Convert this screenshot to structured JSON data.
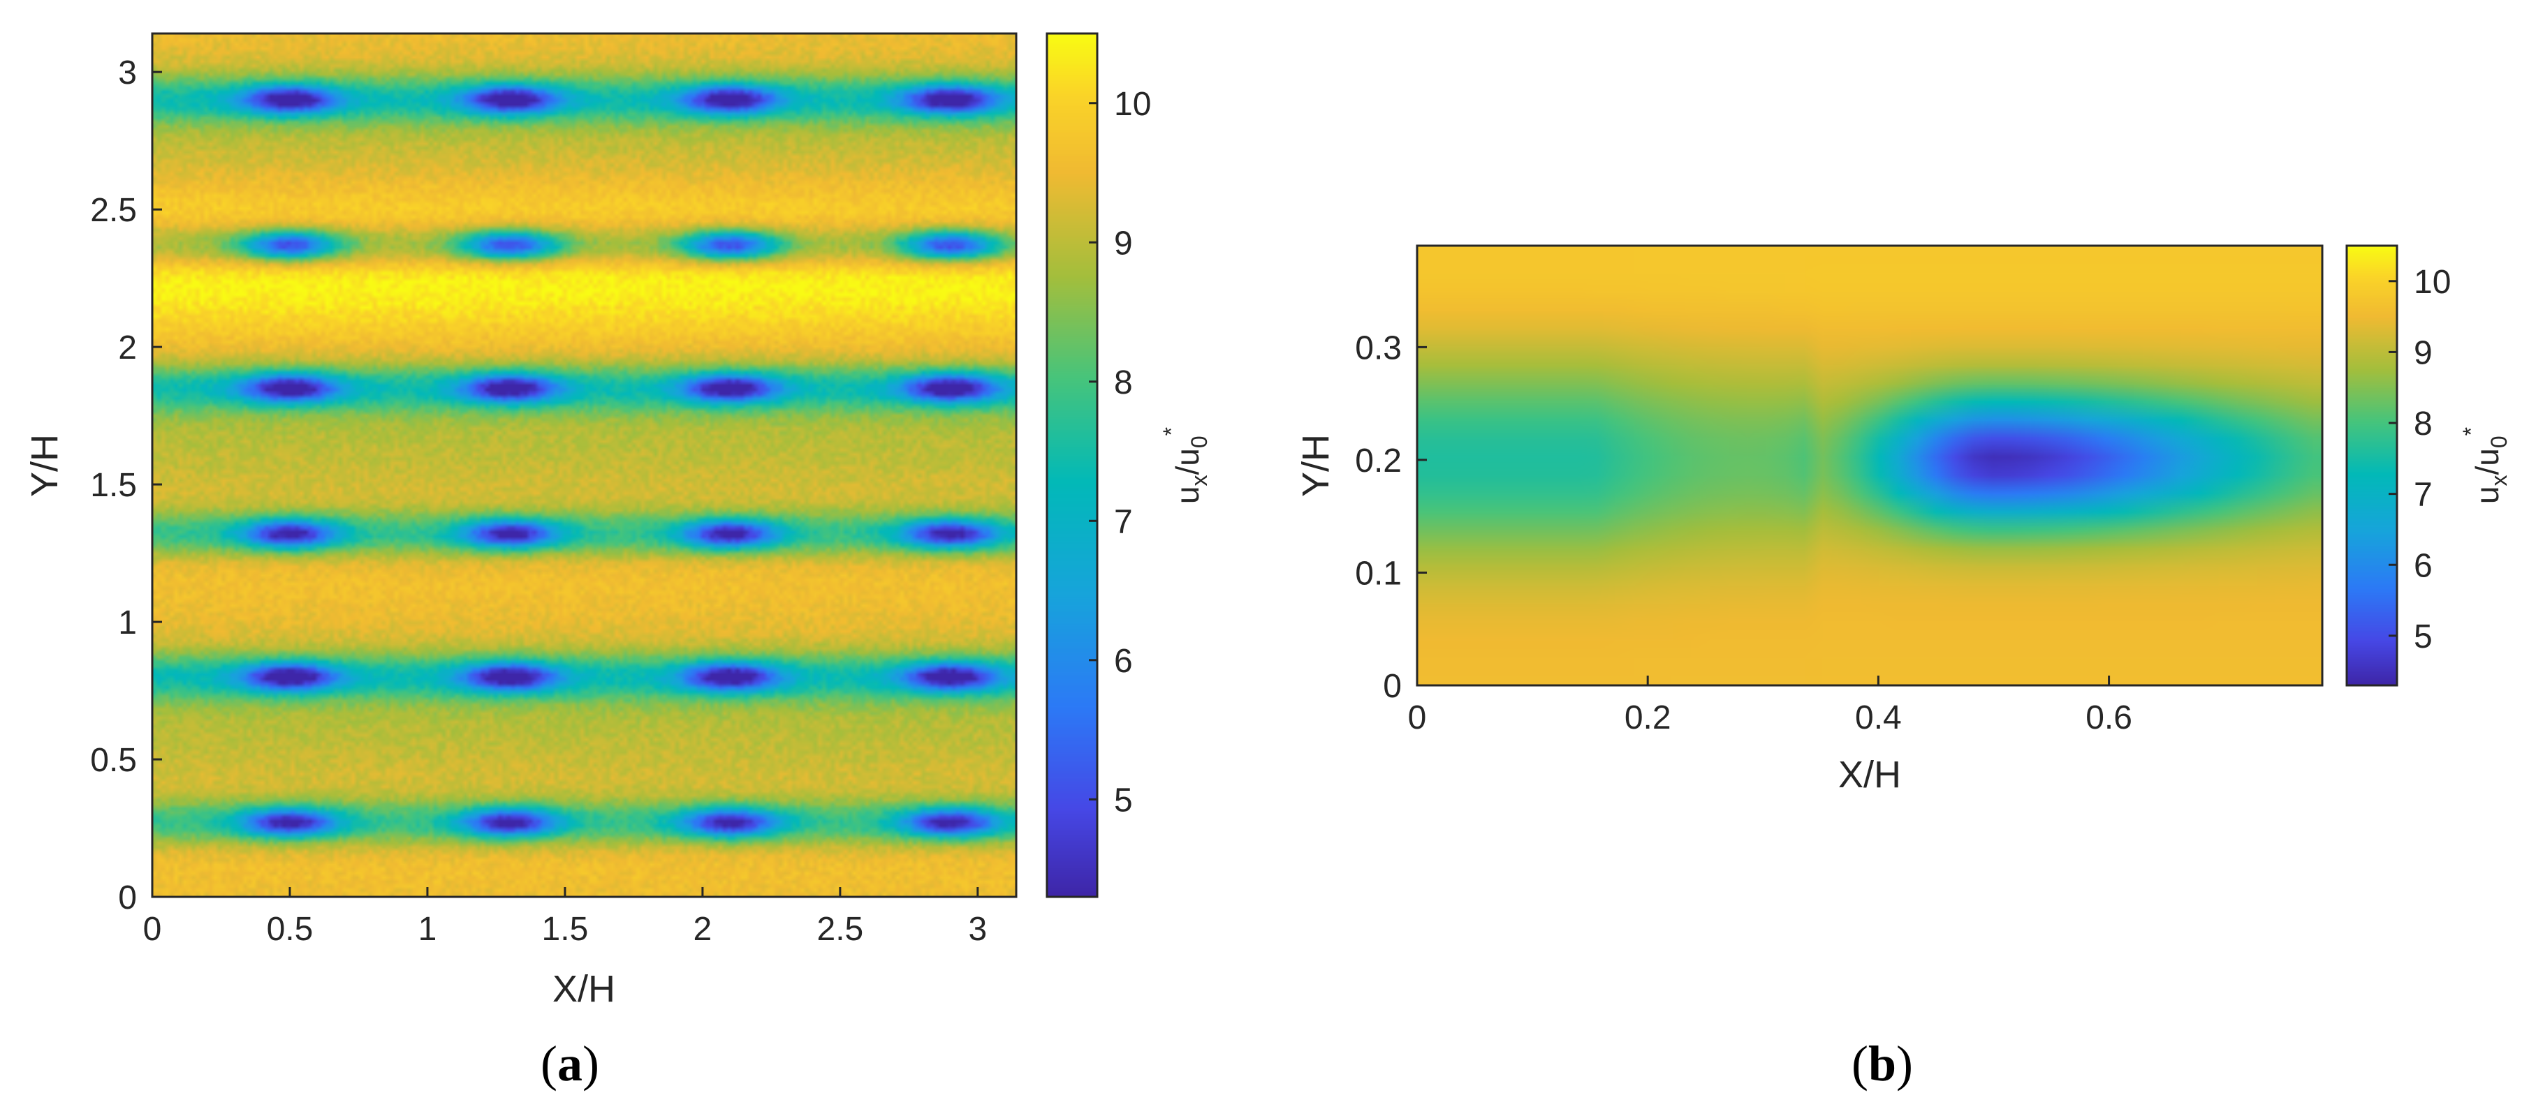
{
  "chart_data": [
    {
      "type": "heatmap",
      "panel": "(a)",
      "xlabel": "X/H",
      "ylabel": "Y/H",
      "xlim": [
        0,
        3.14
      ],
      "ylim": [
        0,
        3.14
      ],
      "xticks": [
        "0",
        "0.5",
        "1",
        "1.5",
        "2",
        "2.5",
        "3"
      ],
      "yticks": [
        "0",
        "0.5",
        "1",
        "1.5",
        "2",
        "2.5",
        "3"
      ],
      "colorbar": {
        "label": "u_x/u_0^*",
        "range": [
          4.3,
          10.5
        ],
        "ticks": [
          "5",
          "6",
          "7",
          "8",
          "9",
          "10"
        ],
        "colormap": "parula"
      },
      "field": {
        "background_value": 9.3,
        "low_speed_streak_rows_y": [
          0.27,
          0.8,
          1.32,
          1.85,
          2.37,
          2.9
        ],
        "wake_centers_x": [
          0.5,
          1.3,
          2.1,
          2.9
        ],
        "wake_min_value": 4.5,
        "high_speed_band_y": [
          2.05,
          2.62
        ],
        "high_speed_value": 10.3
      }
    },
    {
      "type": "heatmap",
      "panel": "(b)",
      "xlabel": "X/H",
      "ylabel": "Y/H",
      "xlim": [
        0,
        0.785
      ],
      "ylim": [
        0,
        0.39
      ],
      "xticks": [
        "0",
        "0.2",
        "0.4",
        "0.6"
      ],
      "yticks": [
        "0",
        "0.1",
        "0.2",
        "0.3"
      ],
      "colorbar": {
        "label": "u_x/u_0^*",
        "range": [
          4.3,
          10.5
        ],
        "ticks": [
          "5",
          "6",
          "7",
          "8",
          "9",
          "10"
        ],
        "colormap": "parula"
      },
      "field": {
        "background_value": 9.6,
        "streak_center_y": 0.2,
        "wake_center_x": 0.5,
        "wake_min_value": 4.4,
        "inflow_value_at_x0": 7.6
      }
    }
  ],
  "captions": {
    "a_letter": "a",
    "b_letter": "b",
    "open": "(",
    "close": ")"
  },
  "colorbar_text": {
    "u": "u",
    "x": "x",
    "slash": "/u",
    "zero": "0",
    "star": "*"
  }
}
